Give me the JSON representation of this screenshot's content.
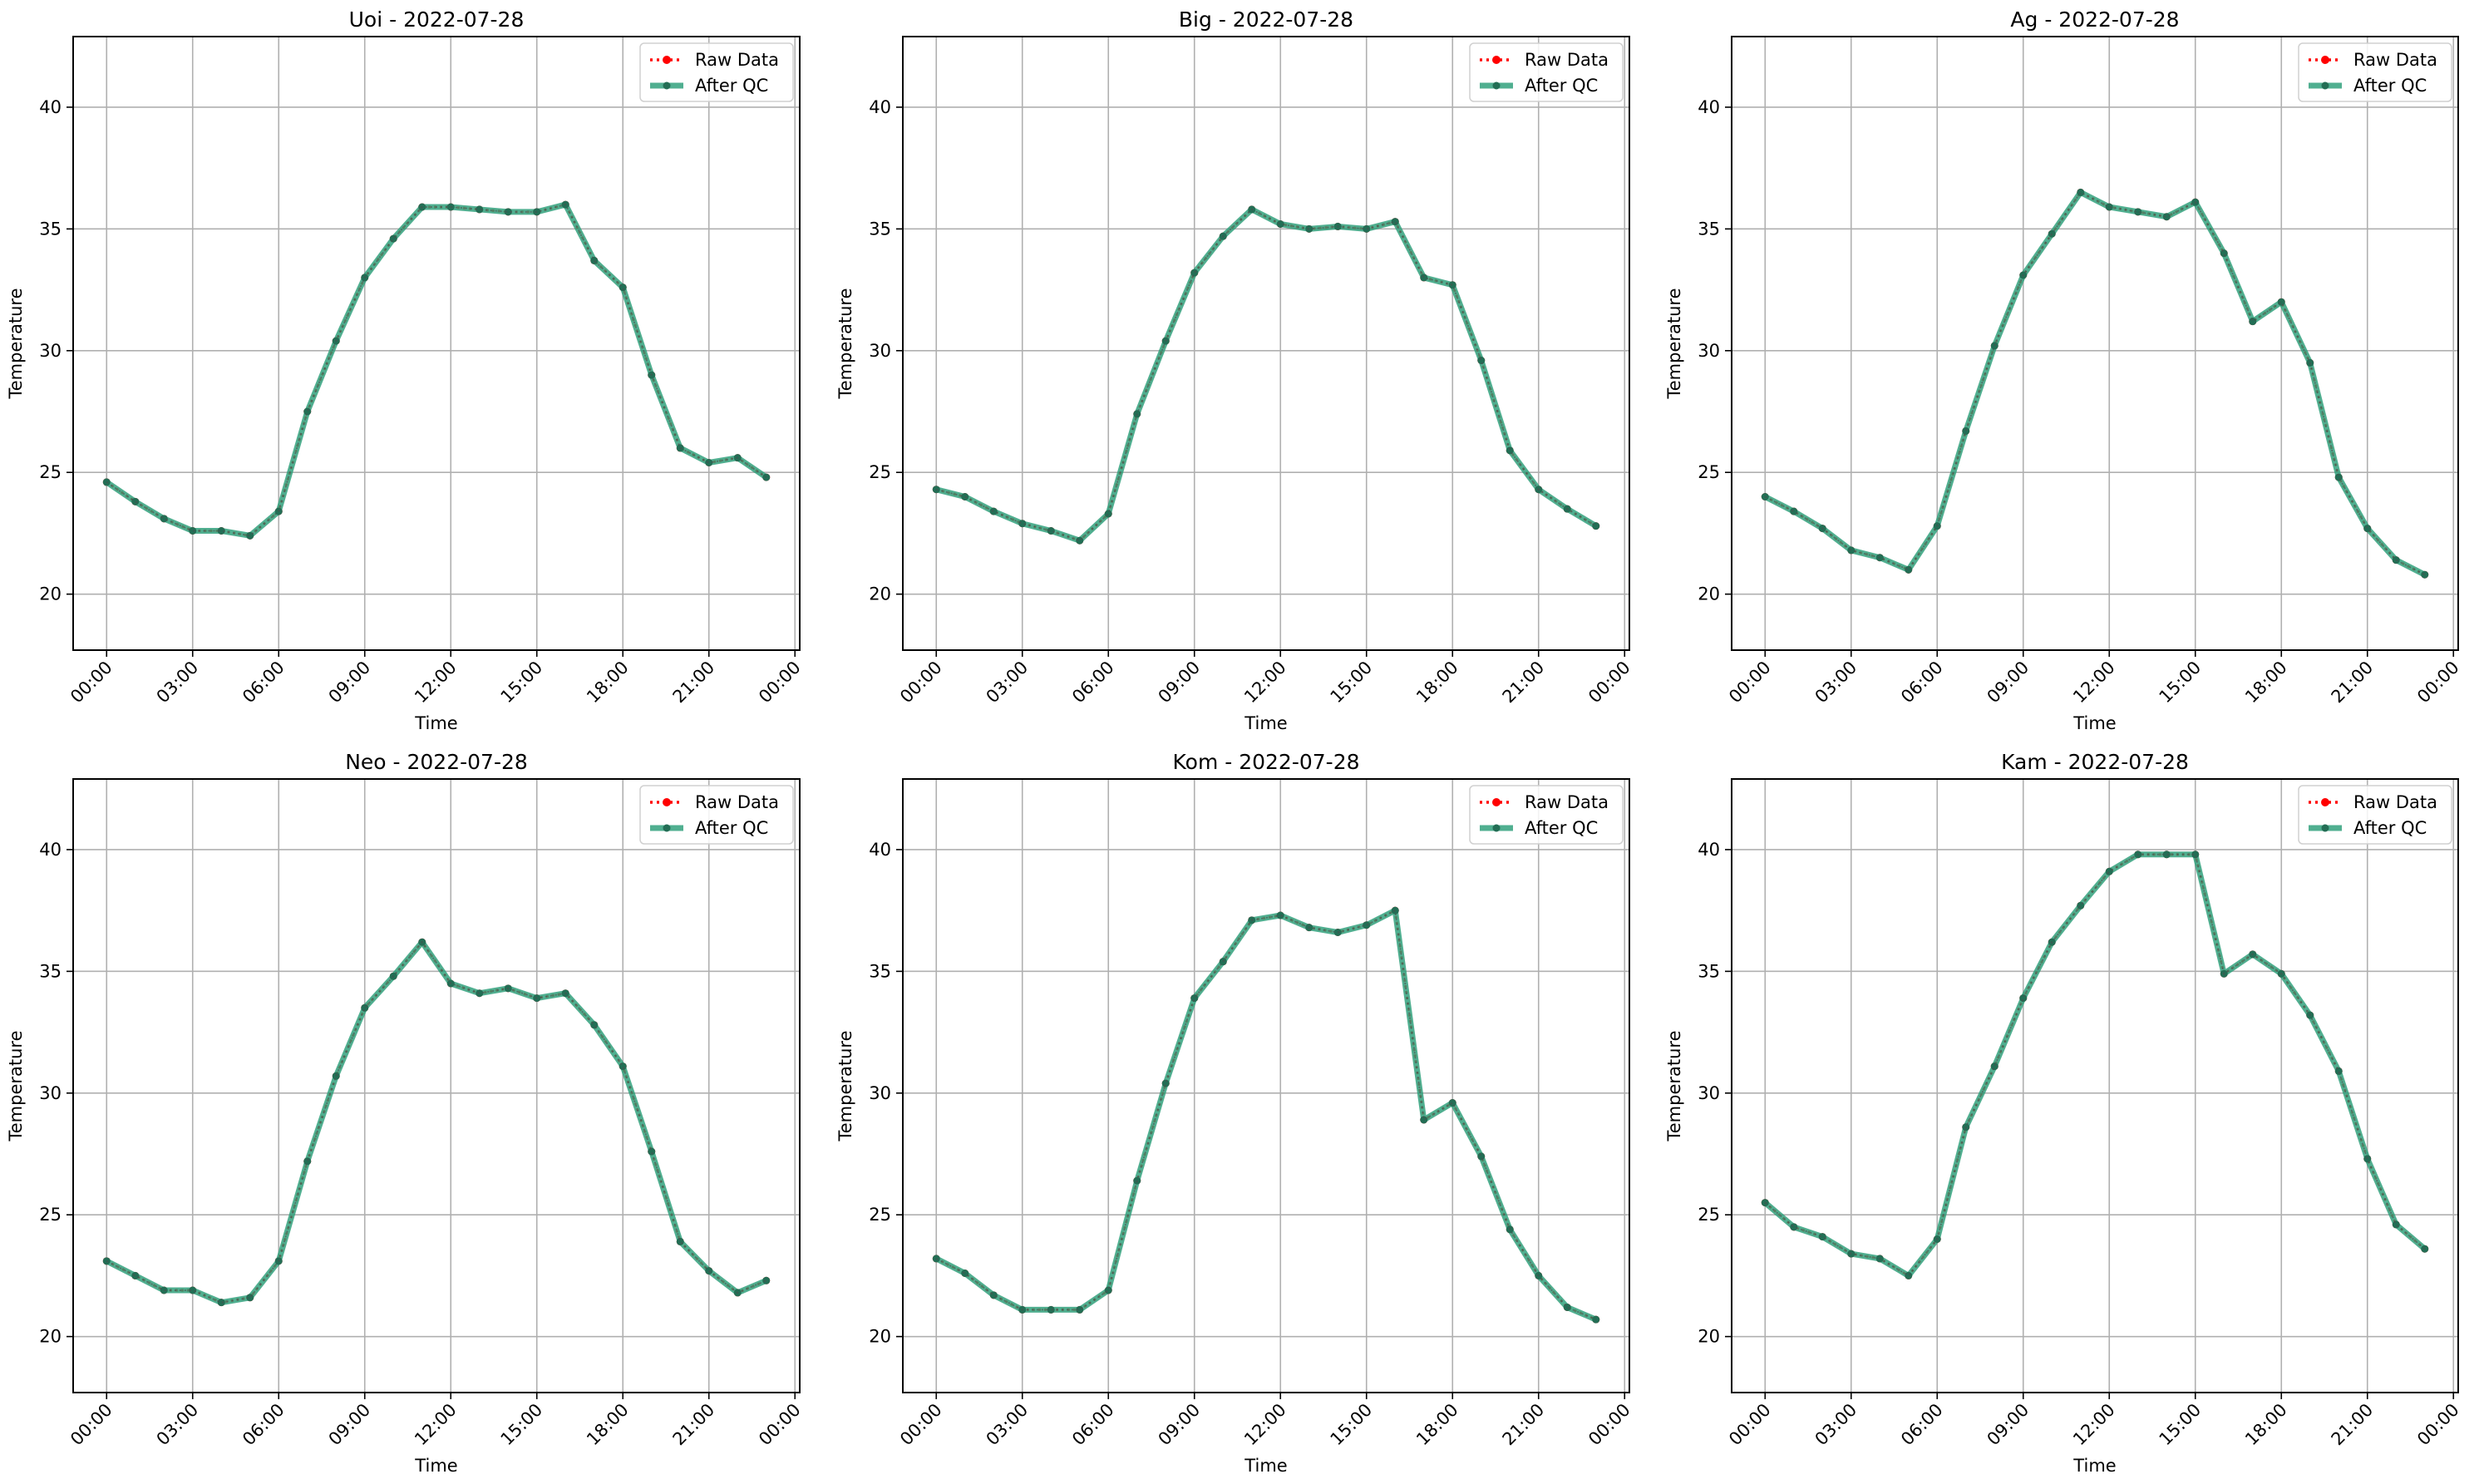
{
  "colors": {
    "raw": "#ff0000",
    "qc": "#2a9d78",
    "grid": "#b0b0b0",
    "frame": "#000000"
  },
  "legend_labels": {
    "raw": "Raw Data",
    "qc": "After QC"
  },
  "chart_data": [
    {
      "type": "line",
      "title": "Uoi - 2022-07-28",
      "xlabel": "Time",
      "ylabel": "Temperature",
      "xticks": [
        "00:00",
        "03:00",
        "06:00",
        "09:00",
        "12:00",
        "15:00",
        "18:00",
        "21:00",
        "00:00"
      ],
      "yticks": [
        20,
        25,
        30,
        35,
        40
      ],
      "ylim": [
        17.7,
        42.9
      ],
      "xlim": [
        "2022-07-27 22:50",
        "2022-07-29 00:10"
      ],
      "grid": true,
      "legend": "top-right",
      "x": [
        "00:00",
        "01:00",
        "02:00",
        "03:00",
        "04:00",
        "05:00",
        "06:00",
        "07:00",
        "08:00",
        "09:00",
        "10:00",
        "11:00",
        "12:00",
        "13:00",
        "14:00",
        "15:00",
        "16:00",
        "17:00",
        "18:00",
        "19:00",
        "20:00",
        "21:00",
        "22:00",
        "23:00"
      ],
      "series": [
        {
          "name": "Raw Data",
          "values": [
            24.6,
            23.8,
            23.1,
            22.6,
            22.6,
            22.4,
            23.4,
            27.5,
            30.4,
            33.0,
            34.6,
            35.9,
            35.9,
            35.8,
            35.7,
            35.7,
            36.0,
            33.7,
            32.6,
            29.0,
            26.0,
            25.4,
            25.6,
            24.8
          ]
        },
        {
          "name": "After QC",
          "values": [
            24.6,
            23.8,
            23.1,
            22.6,
            22.6,
            22.4,
            23.4,
            27.5,
            30.4,
            33.0,
            34.6,
            35.9,
            35.9,
            35.8,
            35.7,
            35.7,
            36.0,
            33.7,
            32.6,
            29.0,
            26.0,
            25.4,
            25.6,
            24.8
          ]
        }
      ]
    },
    {
      "type": "line",
      "title": "Big - 2022-07-28",
      "xlabel": "Time",
      "ylabel": "Temperature",
      "xticks": [
        "00:00",
        "03:00",
        "06:00",
        "09:00",
        "12:00",
        "15:00",
        "18:00",
        "21:00",
        "00:00"
      ],
      "yticks": [
        20,
        25,
        30,
        35,
        40
      ],
      "ylim": [
        17.7,
        42.9
      ],
      "xlim": [
        "2022-07-27 22:50",
        "2022-07-29 00:10"
      ],
      "grid": true,
      "legend": "top-right",
      "x": [
        "00:00",
        "01:00",
        "02:00",
        "03:00",
        "04:00",
        "05:00",
        "06:00",
        "07:00",
        "08:00",
        "09:00",
        "10:00",
        "11:00",
        "12:00",
        "13:00",
        "14:00",
        "15:00",
        "16:00",
        "17:00",
        "18:00",
        "19:00",
        "20:00",
        "21:00",
        "22:00",
        "23:00"
      ],
      "series": [
        {
          "name": "Raw Data",
          "values": [
            24.3,
            24.0,
            23.4,
            22.9,
            22.6,
            22.2,
            23.3,
            27.4,
            30.4,
            33.2,
            34.7,
            35.8,
            35.2,
            35.0,
            35.1,
            35.0,
            35.3,
            33.0,
            32.7,
            29.6,
            25.9,
            24.3,
            23.5,
            22.8
          ]
        },
        {
          "name": "After QC",
          "values": [
            24.3,
            24.0,
            23.4,
            22.9,
            22.6,
            22.2,
            23.3,
            27.4,
            30.4,
            33.2,
            34.7,
            35.8,
            35.2,
            35.0,
            35.1,
            35.0,
            35.3,
            33.0,
            32.7,
            29.6,
            25.9,
            24.3,
            23.5,
            22.8
          ]
        }
      ]
    },
    {
      "type": "line",
      "title": "Ag - 2022-07-28",
      "xlabel": "Time",
      "ylabel": "Temperature",
      "xticks": [
        "00:00",
        "03:00",
        "06:00",
        "09:00",
        "12:00",
        "15:00",
        "18:00",
        "21:00",
        "00:00"
      ],
      "yticks": [
        20,
        25,
        30,
        35,
        40
      ],
      "ylim": [
        17.7,
        42.9
      ],
      "xlim": [
        "2022-07-27 22:50",
        "2022-07-29 00:10"
      ],
      "grid": true,
      "legend": "top-right",
      "x": [
        "00:00",
        "01:00",
        "02:00",
        "03:00",
        "04:00",
        "05:00",
        "06:00",
        "07:00",
        "08:00",
        "09:00",
        "10:00",
        "11:00",
        "12:00",
        "13:00",
        "14:00",
        "15:00",
        "16:00",
        "17:00",
        "18:00",
        "19:00",
        "20:00",
        "21:00",
        "22:00",
        "23:00"
      ],
      "series": [
        {
          "name": "Raw Data",
          "values": [
            24.0,
            23.4,
            22.7,
            21.8,
            21.5,
            21.0,
            22.8,
            26.7,
            30.2,
            33.1,
            34.8,
            36.5,
            35.9,
            35.7,
            35.5,
            36.1,
            34.0,
            31.2,
            32.0,
            29.5,
            24.8,
            22.7,
            21.4,
            20.8
          ]
        },
        {
          "name": "After QC",
          "values": [
            24.0,
            23.4,
            22.7,
            21.8,
            21.5,
            21.0,
            22.8,
            26.7,
            30.2,
            33.1,
            34.8,
            36.5,
            35.9,
            35.7,
            35.5,
            36.1,
            34.0,
            31.2,
            32.0,
            29.5,
            24.8,
            22.7,
            21.4,
            20.8
          ]
        }
      ]
    },
    {
      "type": "line",
      "title": "Neo - 2022-07-28",
      "xlabel": "Time",
      "ylabel": "Temperature",
      "xticks": [
        "00:00",
        "03:00",
        "06:00",
        "09:00",
        "12:00",
        "15:00",
        "18:00",
        "21:00",
        "00:00"
      ],
      "yticks": [
        20,
        25,
        30,
        35,
        40
      ],
      "ylim": [
        17.7,
        42.9
      ],
      "xlim": [
        "2022-07-27 22:50",
        "2022-07-29 00:10"
      ],
      "grid": true,
      "legend": "top-right",
      "x": [
        "00:00",
        "01:00",
        "02:00",
        "03:00",
        "04:00",
        "05:00",
        "06:00",
        "07:00",
        "08:00",
        "09:00",
        "10:00",
        "11:00",
        "12:00",
        "13:00",
        "14:00",
        "15:00",
        "16:00",
        "17:00",
        "18:00",
        "19:00",
        "20:00",
        "21:00",
        "22:00",
        "23:00"
      ],
      "series": [
        {
          "name": "Raw Data",
          "values": [
            23.1,
            22.5,
            21.9,
            21.9,
            21.4,
            21.6,
            23.1,
            27.2,
            30.7,
            33.5,
            34.8,
            36.2,
            34.5,
            34.1,
            34.3,
            33.9,
            34.1,
            32.8,
            31.1,
            27.6,
            23.9,
            22.7,
            21.8,
            22.3
          ]
        },
        {
          "name": "After QC",
          "values": [
            23.1,
            22.5,
            21.9,
            21.9,
            21.4,
            21.6,
            23.1,
            27.2,
            30.7,
            33.5,
            34.8,
            36.2,
            34.5,
            34.1,
            34.3,
            33.9,
            34.1,
            32.8,
            31.1,
            27.6,
            23.9,
            22.7,
            21.8,
            22.3
          ]
        }
      ]
    },
    {
      "type": "line",
      "title": "Kom - 2022-07-28",
      "xlabel": "Time",
      "ylabel": "Temperature",
      "xticks": [
        "00:00",
        "03:00",
        "06:00",
        "09:00",
        "12:00",
        "15:00",
        "18:00",
        "21:00",
        "00:00"
      ],
      "yticks": [
        20,
        25,
        30,
        35,
        40
      ],
      "ylim": [
        17.7,
        42.9
      ],
      "xlim": [
        "2022-07-27 22:50",
        "2022-07-29 00:10"
      ],
      "grid": true,
      "legend": "top-right",
      "x": [
        "00:00",
        "01:00",
        "02:00",
        "03:00",
        "04:00",
        "05:00",
        "06:00",
        "07:00",
        "08:00",
        "09:00",
        "10:00",
        "11:00",
        "12:00",
        "13:00",
        "14:00",
        "15:00",
        "16:00",
        "17:00",
        "18:00",
        "19:00",
        "20:00",
        "21:00",
        "22:00",
        "23:00"
      ],
      "series": [
        {
          "name": "Raw Data",
          "values": [
            23.2,
            22.6,
            21.7,
            21.1,
            21.1,
            21.1,
            21.9,
            26.4,
            30.4,
            33.9,
            35.4,
            37.1,
            37.3,
            36.8,
            36.6,
            36.9,
            37.5,
            28.9,
            29.6,
            27.4,
            24.4,
            22.5,
            21.2,
            20.7
          ]
        },
        {
          "name": "After QC",
          "values": [
            23.2,
            22.6,
            21.7,
            21.1,
            21.1,
            21.1,
            21.9,
            26.4,
            30.4,
            33.9,
            35.4,
            37.1,
            37.3,
            36.8,
            36.6,
            36.9,
            37.5,
            28.9,
            29.6,
            27.4,
            24.4,
            22.5,
            21.2,
            20.7
          ]
        }
      ]
    },
    {
      "type": "line",
      "title": "Kam - 2022-07-28",
      "xlabel": "Time",
      "ylabel": "Temperature",
      "xticks": [
        "00:00",
        "03:00",
        "06:00",
        "09:00",
        "12:00",
        "15:00",
        "18:00",
        "21:00",
        "00:00"
      ],
      "yticks": [
        20,
        25,
        30,
        35,
        40
      ],
      "ylim": [
        17.7,
        42.9
      ],
      "xlim": [
        "2022-07-27 22:50",
        "2022-07-29 00:10"
      ],
      "grid": true,
      "legend": "top-right",
      "x": [
        "00:00",
        "01:00",
        "02:00",
        "03:00",
        "04:00",
        "05:00",
        "06:00",
        "07:00",
        "08:00",
        "09:00",
        "10:00",
        "11:00",
        "12:00",
        "13:00",
        "14:00",
        "15:00",
        "16:00",
        "17:00",
        "18:00",
        "19:00",
        "20:00",
        "21:00",
        "22:00",
        "23:00"
      ],
      "series": [
        {
          "name": "Raw Data",
          "values": [
            25.5,
            24.5,
            24.1,
            23.4,
            23.2,
            22.5,
            24.0,
            28.6,
            31.1,
            33.9,
            36.2,
            37.7,
            39.1,
            39.8,
            39.8,
            39.8,
            34.9,
            35.7,
            34.9,
            33.2,
            30.9,
            27.3,
            24.6,
            23.6
          ]
        },
        {
          "name": "After QC",
          "values": [
            25.5,
            24.5,
            24.1,
            23.4,
            23.2,
            22.5,
            24.0,
            28.6,
            31.1,
            33.9,
            36.2,
            37.7,
            39.1,
            39.8,
            39.8,
            39.8,
            34.9,
            35.7,
            34.9,
            33.2,
            30.9,
            27.3,
            24.6,
            23.6
          ]
        }
      ]
    }
  ]
}
